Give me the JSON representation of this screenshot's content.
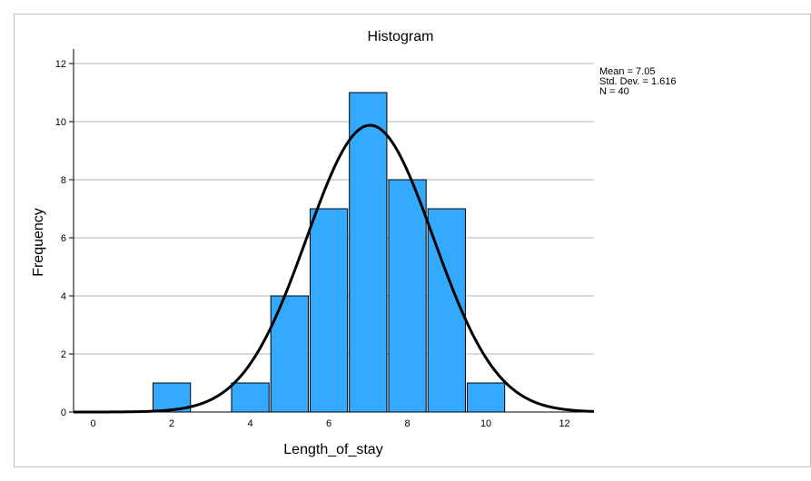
{
  "chart_data": {
    "type": "bar",
    "title": "Histogram",
    "xlabel": "Length_of_stay",
    "ylabel": "Frequency",
    "xlim": [
      -0.5,
      12.75
    ],
    "ylim": [
      0,
      12.5
    ],
    "x_ticks": [
      0,
      2,
      4,
      6,
      8,
      10,
      12
    ],
    "y_ticks": [
      0,
      2,
      4,
      6,
      8,
      10,
      12
    ],
    "grid": true,
    "bar_color": "#33aaff",
    "bars": [
      {
        "x": 2,
        "value": 1
      },
      {
        "x": 4,
        "value": 1
      },
      {
        "x": 5,
        "value": 4
      },
      {
        "x": 6,
        "value": 7
      },
      {
        "x": 7,
        "value": 11
      },
      {
        "x": 8,
        "value": 8
      },
      {
        "x": 9,
        "value": 7
      },
      {
        "x": 10,
        "value": 1
      }
    ],
    "normal_curve": {
      "mean": 7.05,
      "std_dev": 1.616,
      "n": 40,
      "bin_width": 1
    },
    "stats_text": [
      "Mean = 7.05",
      "Std. Dev. = 1.616",
      "N = 40"
    ],
    "stats_placement": "top-right"
  }
}
